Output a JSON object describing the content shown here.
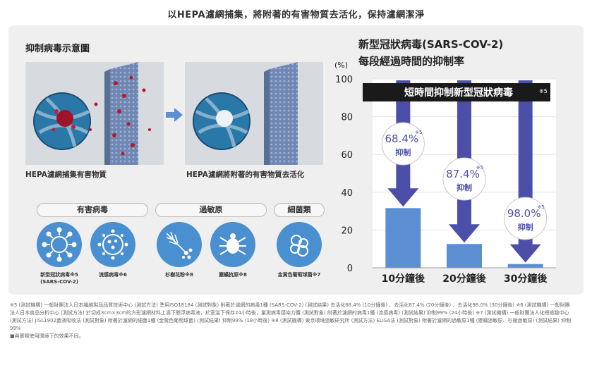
{
  "headline": "以HEPA濾網捕集，將附著的有害物質去活化，保持濾網潔淨",
  "diagram": {
    "title": "抑制病毒示意圖",
    "caption_left": "HEPA濾網捕集有害物質",
    "caption_right": "HEPA濾網將附著的有害物質去活化"
  },
  "categories": [
    {
      "label": "有害病毒"
    },
    {
      "label": "過敏原"
    },
    {
      "label": "細菌類"
    }
  ],
  "agents": [
    {
      "label": "新型冠狀病毒※5",
      "sublabel": "(SARS-COV-2)",
      "icon": "coronavirus-icon"
    },
    {
      "label": "流感病毒※6",
      "sublabel": "",
      "icon": "influenza-virus-icon"
    },
    {
      "label": "杉樹花粉※8",
      "sublabel": "",
      "icon": "pollen-icon"
    },
    {
      "label": "塵蟎抗原※8",
      "sublabel": "",
      "icon": "dust-mite-icon"
    },
    {
      "label": "金黃色葡萄球菌※7",
      "sublabel": "",
      "icon": "bacteria-icon"
    }
  ],
  "chart_title_line1": "新型冠狀病毒(SARS-COV-2)",
  "chart_title_line2": "每段經過時間的抑制率",
  "chart_data": {
    "type": "bar",
    "title": "新型冠狀病毒(SARS-COV-2) 每段經過時間的抑制率",
    "ylabel": "(%)",
    "categories": [
      "10分鐘後",
      "20分鐘後",
      "30分鐘後"
    ],
    "values": [
      31.6,
      12.6,
      2.0
    ],
    "reduction_labels": [
      "68.4%",
      "87.4%",
      "98.0%"
    ],
    "reduction_note": "※5",
    "reduction_caption": "抑制",
    "banner": "短時間抑制新型冠狀病毒",
    "banner_note": "※5",
    "ylim": [
      0,
      100
    ],
    "yticks": [
      "0",
      "20",
      "40",
      "60",
      "80",
      "100"
    ],
    "grid": true
  },
  "colors": {
    "bar": "#5b8fd2",
    "arrow": "#4b4fa8",
    "banner": "#1a1a1a",
    "icon_bg": "#4a8fd0"
  },
  "footnotes": [
    "※5 (測試機構) 一般財團法人日本繊維製品品質技術中心 (測試方法) 準用ISO18184 (測試對象) 附著於濾網的病毒1種 (SARS-COV-2) (測試結果) 去活化68.4% (10分鐘後) 、去活化87.4% (20分鐘後) 、去活化98.0% (30分鐘後) ※6 (測試機構) 一般財團法人日本食品分析中心 (測試方法) 於切成3cm×3cm的方形濾網材料上滴下懸浮病毒液，於室溫下保存24小時後，量測病毒感染力價 (測試對象) 附著於濾網的病毒1種 (流感病毒) (測試結果) 抑制99% (24小時後) ※7 (測試機構) 一般財團法人化總檢驗中心 (測試方法) JISL1902菌液吸收法 (測試對象) 附著於濾網的細菌1種 (金黃色葡萄球菌) (測試結果) 抑制99% (18小時後) ※8 (測試機構) 東京環境過敏研究所 (測試方法) ELISA法 (測試對象) 附著於濾網的過敏原1種 (塵蟎過敏原、杉樹過敏原) (測試結果) 抑制99%",
    "■與實際使用環境下的效果不同。"
  ]
}
